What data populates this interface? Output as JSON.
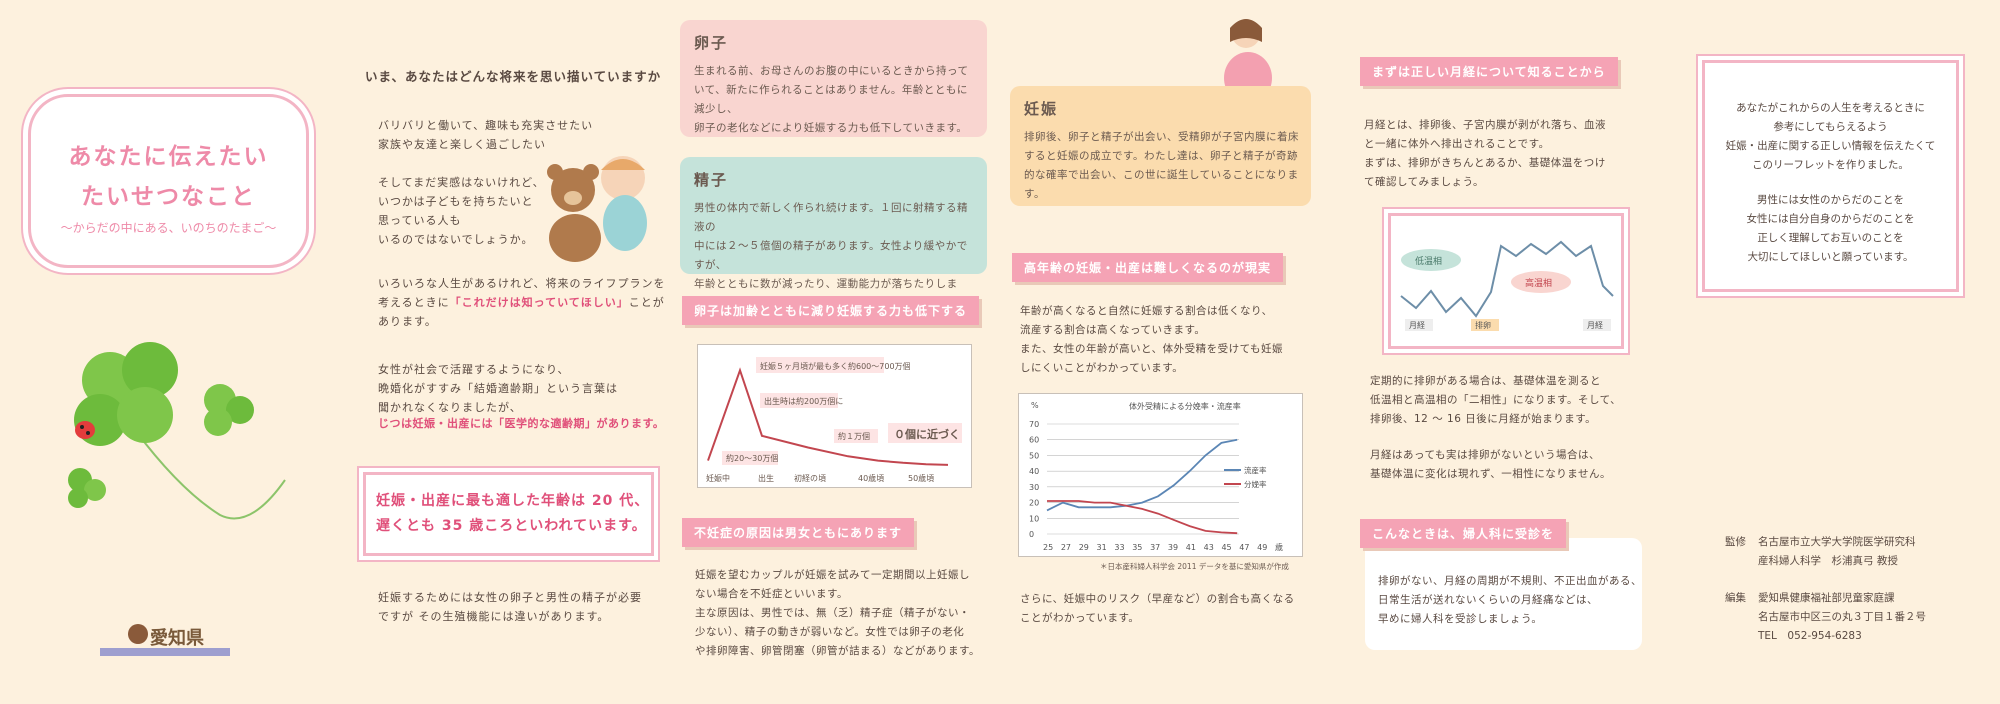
{
  "panel1": {
    "title_line1": "あなたに伝えたい",
    "title_line2": "たいせつなこと",
    "subtitle": "～からだの中にある、いのちのたまご～",
    "logo_text": "愛知県"
  },
  "panel2": {
    "heading": "いま、あなたはどんな将来を思い描いていますか",
    "para1": "バリバリと働いて、趣味も充実させたい\n家族や友達と楽しく過ごしたい",
    "para2": "そしてまだ実感はないけれど、\nいつかは子どもを持ちたいと\n思っている人も\nいるのではないでしょうか。",
    "para3_a": "いろいろな人生があるけれど、将来のライフプランを\n考えるときに",
    "para3_highlight": "「これだけは知っていてほしい」",
    "para3_b": "ことが\nあります。",
    "para4": "女性が社会で活躍するようになり、\n晩婚化がすすみ「結婚適齢期」という言葉は\n聞かれなくなりましたが、",
    "para4_highlight": "じつは妊娠・出産には「医学的な適齢期」があります。",
    "box_text": "妊娠・出産に最も適した年齢は 20 代、\n遅くとも 35 歳ころといわれています。",
    "para5": "妊娠するためには女性の卵子と男性の精子が必要\nですが その生殖機能には違いがあります。"
  },
  "panel3": {
    "ovum_title": "卵子",
    "ovum_body": "生まれる前、お母さんのお腹の中にいるときから持って\nいて、新たに作られることはありません。年齢とともに減少し、\n卵子の老化などにより妊娠する力も低下していきます。",
    "sperm_title": "精子",
    "sperm_body": "男性の体内で新しく作られ続けます。１回に射精する精液の\n中には２～５億個の精子があります。女性より緩やかですが、\n年齢とともに数が減ったり、運動能力が落ちたりします。",
    "head1": "卵子は加齢とともに減り妊娠する力も低下する",
    "chart_labels": {
      "peak": "妊娠５ヶ月頃が最も多く約600～700万個",
      "birth": "出生時は約200万個に",
      "puberty": "約20～30万個",
      "ten_thousand": "約１万個",
      "zero": "０個に近づく",
      "x_ticks": [
        "妊娠中",
        "出生",
        "初経の頃",
        "40歳頃",
        "50歳頃"
      ]
    },
    "head2": "不妊症の原因は男女ともにあります",
    "para": "妊娠を望むカップルが妊娠を試みて一定期間以上妊娠し\nない場合を不妊症といいます。\n主な原因は、男性では、無（乏）精子症（精子がない・\n少ない）、精子の動きが弱いなど。女性では卵子の老化\nや排卵障害、卵管閉塞（卵管が詰まる）などがあります。"
  },
  "panel4": {
    "preg_title": "妊娠",
    "preg_body": "排卵後、卵子と精子が出会い、受精卵が子宮内膜に着床\nすると妊娠の成立です。わたし達は、卵子と精子が奇跡\n的な確率で出会い、この世に誕生していることになります。",
    "head": "高年齢の妊娠・出産は難しくなるのが現実",
    "para1": "年齢が高くなると自然に妊娠する割合は低くなり、\n流産する割合は高くなっていきます。\nまた、女性の年齢が高いと、体外受精を受けても妊娠\nしにくいことがわかっています。",
    "source": "＊日本産科婦人科学会 2011 データを基に愛知県が作成",
    "para2": "さらに、妊娠中のリスク（早産など）の割合も高くなる\nことがわかっています。"
  },
  "panel5": {
    "head1": "まずは正しい月経について知ることから",
    "para1": "月経とは、排卵後、子宮内膜が剥がれ落ち、血液\nと一緒に体外へ排出されることです。\nまずは、排卵がきちんとあるか、基礎体温をつけ\nて確認してみましょう。",
    "bbt_low": "低温相",
    "bbt_high": "高温相",
    "bbt_menses1": "月経",
    "bbt_ovulation": "排卵",
    "bbt_menses2": "月経",
    "para2": "定期的に排卵がある場合は、基礎体温を測ると\n低温相と高温相の「二相性」になります。そして、\n排卵後、12 ～ 16 日後に月経が始まります。",
    "para3": "月経はあっても実は排卵がないという場合は、\n基礎体温に変化は現れず、一相性になりません。",
    "head2": "こんなときは、婦人科に受診を",
    "para4": "排卵がない、月経の周期が不規則、不正出血がある、\n日常生活が送れないくらいの月経痛などは、\n早めに婦人科を受診しましょう。"
  },
  "panel6": {
    "box_para1": "あなたがこれからの人生を考えるときに\n参考にしてもらえるよう\n妊娠・出産に関する正しい情報を伝えたくて\nこのリーフレットを作りました。",
    "box_para2": "男性には女性のからだのことを\n女性には自分自身のからだのことを\n正しく理解してお互いのことを\n大切にしてほしいと願っています。",
    "supervision_label": "監修",
    "supervision": "名古屋市立大学大学院医学研究科\n産科婦人科学　杉浦真弓 教授",
    "editor_label": "編集",
    "editor": "愛知県健康福祉部児童家庭課\n名古屋市中区三の丸３丁目１番２号\nTEL　052-954-6283"
  },
  "chart_data": {
    "type": "line",
    "title": "体外受精による分娩率・流産率",
    "ylabel": "%",
    "ylim": [
      0,
      70
    ],
    "yticks": [
      0,
      10,
      20,
      30,
      40,
      50,
      60,
      70
    ],
    "x": [
      25,
      27,
      29,
      31,
      33,
      35,
      37,
      39,
      41,
      43,
      45,
      47,
      49
    ],
    "x_tick_labels": [
      "25",
      "27",
      "29",
      "31",
      "33",
      "35",
      "37",
      "39",
      "41",
      "43",
      "45",
      "47",
      "49",
      "歳"
    ],
    "series": [
      {
        "name": "流産率",
        "color": "#5b86b5",
        "values": [
          15,
          20,
          17,
          17,
          17,
          18,
          20,
          24,
          31,
          40,
          50,
          58,
          60
        ]
      },
      {
        "name": "分娩率",
        "color": "#c2464f",
        "values": [
          21,
          21,
          21,
          20,
          20,
          18,
          16,
          13,
          9,
          5,
          2,
          1,
          0.5
        ]
      }
    ],
    "legend": "right"
  },
  "ovum_chart": {
    "type": "line",
    "values": [
      30,
      650,
      200,
      120,
      60,
      30,
      15,
      5,
      1
    ],
    "ylim": [
      0,
      700
    ]
  }
}
